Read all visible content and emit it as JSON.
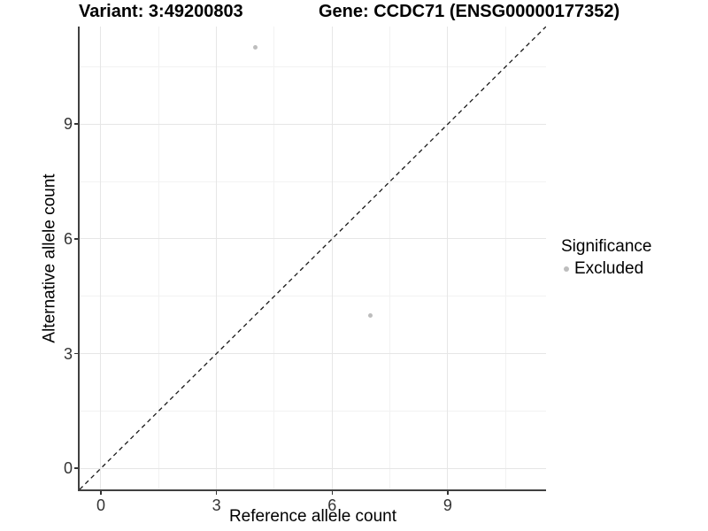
{
  "header": {
    "variant_label": "Variant: 3:49200803",
    "gene_label": "Gene: CCDC71 (ENSG00000177352)"
  },
  "chart_data": {
    "type": "scatter",
    "xlabel": "Reference allele count",
    "ylabel": "Alternative allele count",
    "xlim": [
      -0.55,
      11.55
    ],
    "ylim": [
      -0.55,
      11.55
    ],
    "x_major_ticks": [
      0,
      3,
      6,
      9
    ],
    "y_major_ticks": [
      0,
      3,
      6,
      9
    ],
    "x_minor_ticks": [
      1.5,
      4.5,
      7.5,
      10.5
    ],
    "y_minor_ticks": [
      1.5,
      4.5,
      7.5,
      10.5
    ],
    "grid": "major+minor shown, white background",
    "identity_line": {
      "slope": 1,
      "intercept": 0,
      "style": "dashed",
      "color": "#1a1a1a"
    },
    "series": [
      {
        "name": "Excluded",
        "color": "#bdbdbd",
        "points": [
          {
            "x": 4,
            "y": 11
          },
          {
            "x": 7,
            "y": 4
          }
        ]
      }
    ],
    "legend": {
      "title": "Significance",
      "position": "right",
      "entries": [
        {
          "label": "Excluded",
          "color": "#bdbdbd"
        }
      ]
    }
  },
  "colors": {
    "major_grid": "#e6e6e6",
    "minor_grid": "#f2f2f2",
    "axis_line": "#404040",
    "tick_mark": "#333333",
    "tick_text": "#333333",
    "point": "#bdbdbd"
  }
}
